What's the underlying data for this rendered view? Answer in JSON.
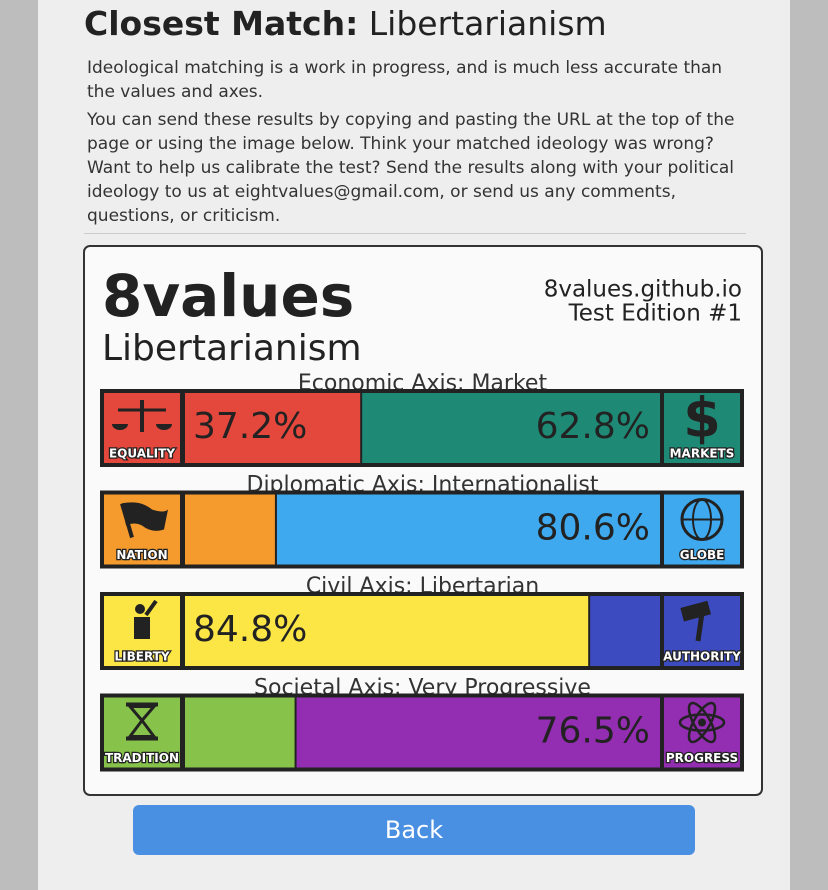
{
  "header": {
    "title_bold": "Closest Match:",
    "title": "Libertarianism"
  },
  "paragraphs": [
    "Ideological matching is a work in progress, and is much less accurate than the values and axes.",
    "You can send these results by copying and pasting the URL at the top of the page or using the image below. Think your matched ideology was wrong? Want to help us calibrate the test? Send the results along with your political ideology to us at eightvalues@gmail.com, or send us any comments, questions, or criticism."
  ],
  "card": {
    "brand": "8values",
    "ideology": "Libertarianism",
    "site": "8values.github.io",
    "edition": "Test Edition #1",
    "axes": [
      {
        "title": "Economic Axis: Market",
        "left": "EQUALITY",
        "right": "MARKETS",
        "colors": [
          "#e4473c",
          "#1e8a76"
        ],
        "values": [
          37.2,
          62.8
        ],
        "value_labels": [
          "37.2%",
          "62.8%"
        ]
      },
      {
        "title": "Diplomatic Axis: Internationalist",
        "left": "NATION",
        "right": "GLOBE",
        "colors": [
          "#f59a2c",
          "#3ea9ee"
        ],
        "values": [
          19.4,
          80.6
        ],
        "value_labels": [
          null,
          "80.6%"
        ]
      },
      {
        "title": "Civil Axis: Libertarian",
        "left": "LIBERTY",
        "right": "AUTHORITY",
        "colors": [
          "#fbe646",
          "#3d4bc1"
        ],
        "values": [
          84.8,
          15.2
        ],
        "value_labels": [
          "84.8%",
          null
        ]
      },
      {
        "title": "Societal Axis: Very Progressive",
        "left": "TRADITION",
        "right": "PROGRESS",
        "colors": [
          "#87c34b",
          "#932db1"
        ],
        "values": [
          23.5,
          76.5
        ],
        "value_labels": [
          null,
          "76.5%"
        ]
      }
    ]
  },
  "button": "Back"
}
